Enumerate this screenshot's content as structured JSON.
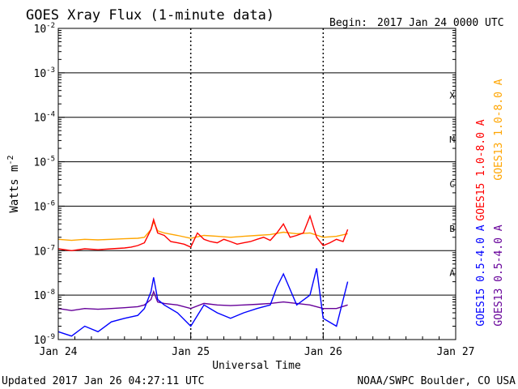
{
  "header": {
    "title": "GOES Xray Flux (1-minute data)",
    "begin_label": "Begin:",
    "begin_value": "2017 Jan 24 0000 UTC"
  },
  "footer": {
    "updated": "Updated 2017 Jan 26 04:27:11 UTC",
    "credit": "NOAA/SWPC Boulder, CO USA"
  },
  "chart_data": {
    "type": "line",
    "title": "GOES Xray Flux (1-minute data)",
    "ylabel": "Watts m",
    "ylabel_sup": "-2",
    "xlabel": "Universal Time",
    "yscale": "log",
    "ylim": [
      1e-09,
      0.01
    ],
    "y_ticks": [
      {
        "base": "10",
        "exp": "-2",
        "value": 0.01
      },
      {
        "base": "10",
        "exp": "-3",
        "value": 0.001
      },
      {
        "base": "10",
        "exp": "-4",
        "value": 0.0001
      },
      {
        "base": "10",
        "exp": "-5",
        "value": 1e-05
      },
      {
        "base": "10",
        "exp": "-6",
        "value": 1e-06
      },
      {
        "base": "10",
        "exp": "-7",
        "value": 1e-07
      },
      {
        "base": "10",
        "exp": "-8",
        "value": 1e-08
      },
      {
        "base": "10",
        "exp": "-9",
        "value": 1e-09
      }
    ],
    "x_ticks": [
      "Jan 24",
      "Jan 25",
      "Jan 26",
      "Jan 27"
    ],
    "xlim_days": [
      0,
      3
    ],
    "day_markers": [
      1,
      2
    ],
    "data_end_day": 2.185,
    "flare_classes": [
      {
        "label": "X",
        "value": 0.0003162
      },
      {
        "label": "M",
        "value": 3.162e-05
      },
      {
        "label": "C",
        "value": 3.162e-06
      },
      {
        "label": "B",
        "value": 3.162e-07
      },
      {
        "label": "A",
        "value": 3.162e-08
      }
    ],
    "class_lines": [
      0.001,
      0.0001,
      1e-05,
      1e-06,
      1e-07,
      1e-08
    ],
    "series": [
      {
        "name": "GOES15 1.0-8.0 A",
        "color": "#ff0000",
        "x": [
          0,
          0.1,
          0.2,
          0.3,
          0.4,
          0.5,
          0.55,
          0.6,
          0.65,
          0.7,
          0.72,
          0.75,
          0.8,
          0.85,
          0.9,
          0.95,
          1.0,
          1.05,
          1.1,
          1.15,
          1.2,
          1.25,
          1.3,
          1.35,
          1.4,
          1.45,
          1.5,
          1.55,
          1.6,
          1.65,
          1.7,
          1.75,
          1.8,
          1.85,
          1.9,
          1.95,
          2.0,
          2.05,
          2.1,
          2.15,
          2.185
        ],
        "y": [
          1.1e-07,
          1e-07,
          1.1e-07,
          1.05e-07,
          1.1e-07,
          1.15e-07,
          1.2e-07,
          1.3e-07,
          1.5e-07,
          3e-07,
          5e-07,
          2.5e-07,
          2.2e-07,
          1.6e-07,
          1.5e-07,
          1.4e-07,
          1.2e-07,
          2.5e-07,
          1.8e-07,
          1.6e-07,
          1.5e-07,
          1.8e-07,
          1.6e-07,
          1.4e-07,
          1.5e-07,
          1.6e-07,
          1.8e-07,
          2e-07,
          1.7e-07,
          2.5e-07,
          4e-07,
          2e-07,
          2.2e-07,
          2.5e-07,
          6e-07,
          2e-07,
          1.3e-07,
          1.5e-07,
          1.8e-07,
          1.6e-07,
          3e-07
        ]
      },
      {
        "name": "GOES13 1.0-8.0 A",
        "color": "#ffa500",
        "x": [
          0,
          0.1,
          0.2,
          0.3,
          0.4,
          0.5,
          0.6,
          0.65,
          0.7,
          0.72,
          0.75,
          0.8,
          0.9,
          1.0,
          1.1,
          1.2,
          1.3,
          1.4,
          1.5,
          1.6,
          1.7,
          1.8,
          1.9,
          2.0,
          2.1,
          2.185
        ],
        "y": [
          1.8e-07,
          1.7e-07,
          1.8e-07,
          1.75e-07,
          1.8e-07,
          1.85e-07,
          1.9e-07,
          2e-07,
          3e-07,
          4.5e-07,
          2.8e-07,
          2.5e-07,
          2.2e-07,
          1.9e-07,
          2.2e-07,
          2.1e-07,
          2e-07,
          2.1e-07,
          2.2e-07,
          2.3e-07,
          2.6e-07,
          2.4e-07,
          2.5e-07,
          2e-07,
          2.1e-07,
          2.4e-07
        ]
      },
      {
        "name": "GOES15 0.5-4.0 A",
        "color": "#0000ff",
        "x": [
          0,
          0.1,
          0.2,
          0.3,
          0.4,
          0.5,
          0.6,
          0.65,
          0.7,
          0.72,
          0.75,
          0.8,
          0.9,
          1.0,
          1.1,
          1.2,
          1.3,
          1.4,
          1.5,
          1.6,
          1.65,
          1.7,
          1.8,
          1.9,
          1.95,
          2.0,
          2.1,
          2.185
        ],
        "y": [
          1.5e-09,
          1.2e-09,
          2e-09,
          1.5e-09,
          2.5e-09,
          3e-09,
          3.5e-09,
          5e-09,
          1.2e-08,
          2.5e-08,
          8e-09,
          6e-09,
          4e-09,
          2e-09,
          6e-09,
          4e-09,
          3e-09,
          4e-09,
          5e-09,
          6e-09,
          1.5e-08,
          3e-08,
          6e-09,
          1e-08,
          4e-08,
          3e-09,
          2e-09,
          2e-08
        ]
      },
      {
        "name": "GOES13 0.5-4.0 A",
        "color": "#660099",
        "x": [
          0,
          0.1,
          0.2,
          0.3,
          0.4,
          0.5,
          0.6,
          0.65,
          0.7,
          0.72,
          0.75,
          0.8,
          0.9,
          1.0,
          1.1,
          1.2,
          1.3,
          1.4,
          1.5,
          1.6,
          1.7,
          1.8,
          1.9,
          2.0,
          2.1,
          2.185
        ],
        "y": [
          5e-09,
          4.5e-09,
          5e-09,
          4.8e-09,
          5e-09,
          5.2e-09,
          5.5e-09,
          6e-09,
          8e-09,
          1.2e-08,
          7e-09,
          6.5e-09,
          6e-09,
          5e-09,
          6.5e-09,
          6e-09,
          5.8e-09,
          6e-09,
          6.2e-09,
          6.5e-09,
          7e-09,
          6.5e-09,
          6e-09,
          5e-09,
          5e-09,
          6e-09
        ]
      }
    ]
  }
}
